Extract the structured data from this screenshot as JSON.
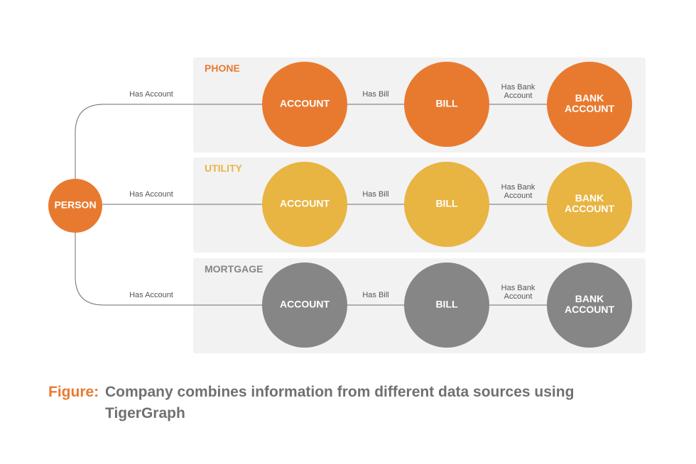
{
  "colors": {
    "phone": "#e87a30",
    "utility": "#e8b442",
    "mortgage": "#868686",
    "person": "#e87a30",
    "caption_prefix": "#e87a30",
    "caption_text": "#707070"
  },
  "person": {
    "label": "PERSON"
  },
  "sections": [
    {
      "name": "PHONE",
      "color_key": "phone",
      "edge_person": "Has Account",
      "nodes": [
        [
          "ACCOUNT"
        ],
        [
          "BILL"
        ],
        [
          "BANK",
          "ACCOUNT"
        ]
      ],
      "edges": [
        [
          "Has Bill"
        ],
        [
          "Has Bank",
          "Account"
        ]
      ]
    },
    {
      "name": "UTILITY",
      "color_key": "utility",
      "edge_person": "Has Account",
      "nodes": [
        [
          "ACCOUNT"
        ],
        [
          "BILL"
        ],
        [
          "BANK",
          "ACCOUNT"
        ]
      ],
      "edges": [
        [
          "Has Bill"
        ],
        [
          "Has Bank",
          "Account"
        ]
      ]
    },
    {
      "name": "MORTGAGE",
      "color_key": "mortgage",
      "edge_person": "Has Account",
      "nodes": [
        [
          "ACCOUNT"
        ],
        [
          "BILL"
        ],
        [
          "BANK",
          "ACCOUNT"
        ]
      ],
      "edges": [
        [
          "Has Bill"
        ],
        [
          "Has Bank",
          "Account"
        ]
      ]
    }
  ],
  "caption": {
    "prefix": "Figure:",
    "line1": "Company combines information from different data sources using",
    "line2": "TigerGraph"
  }
}
